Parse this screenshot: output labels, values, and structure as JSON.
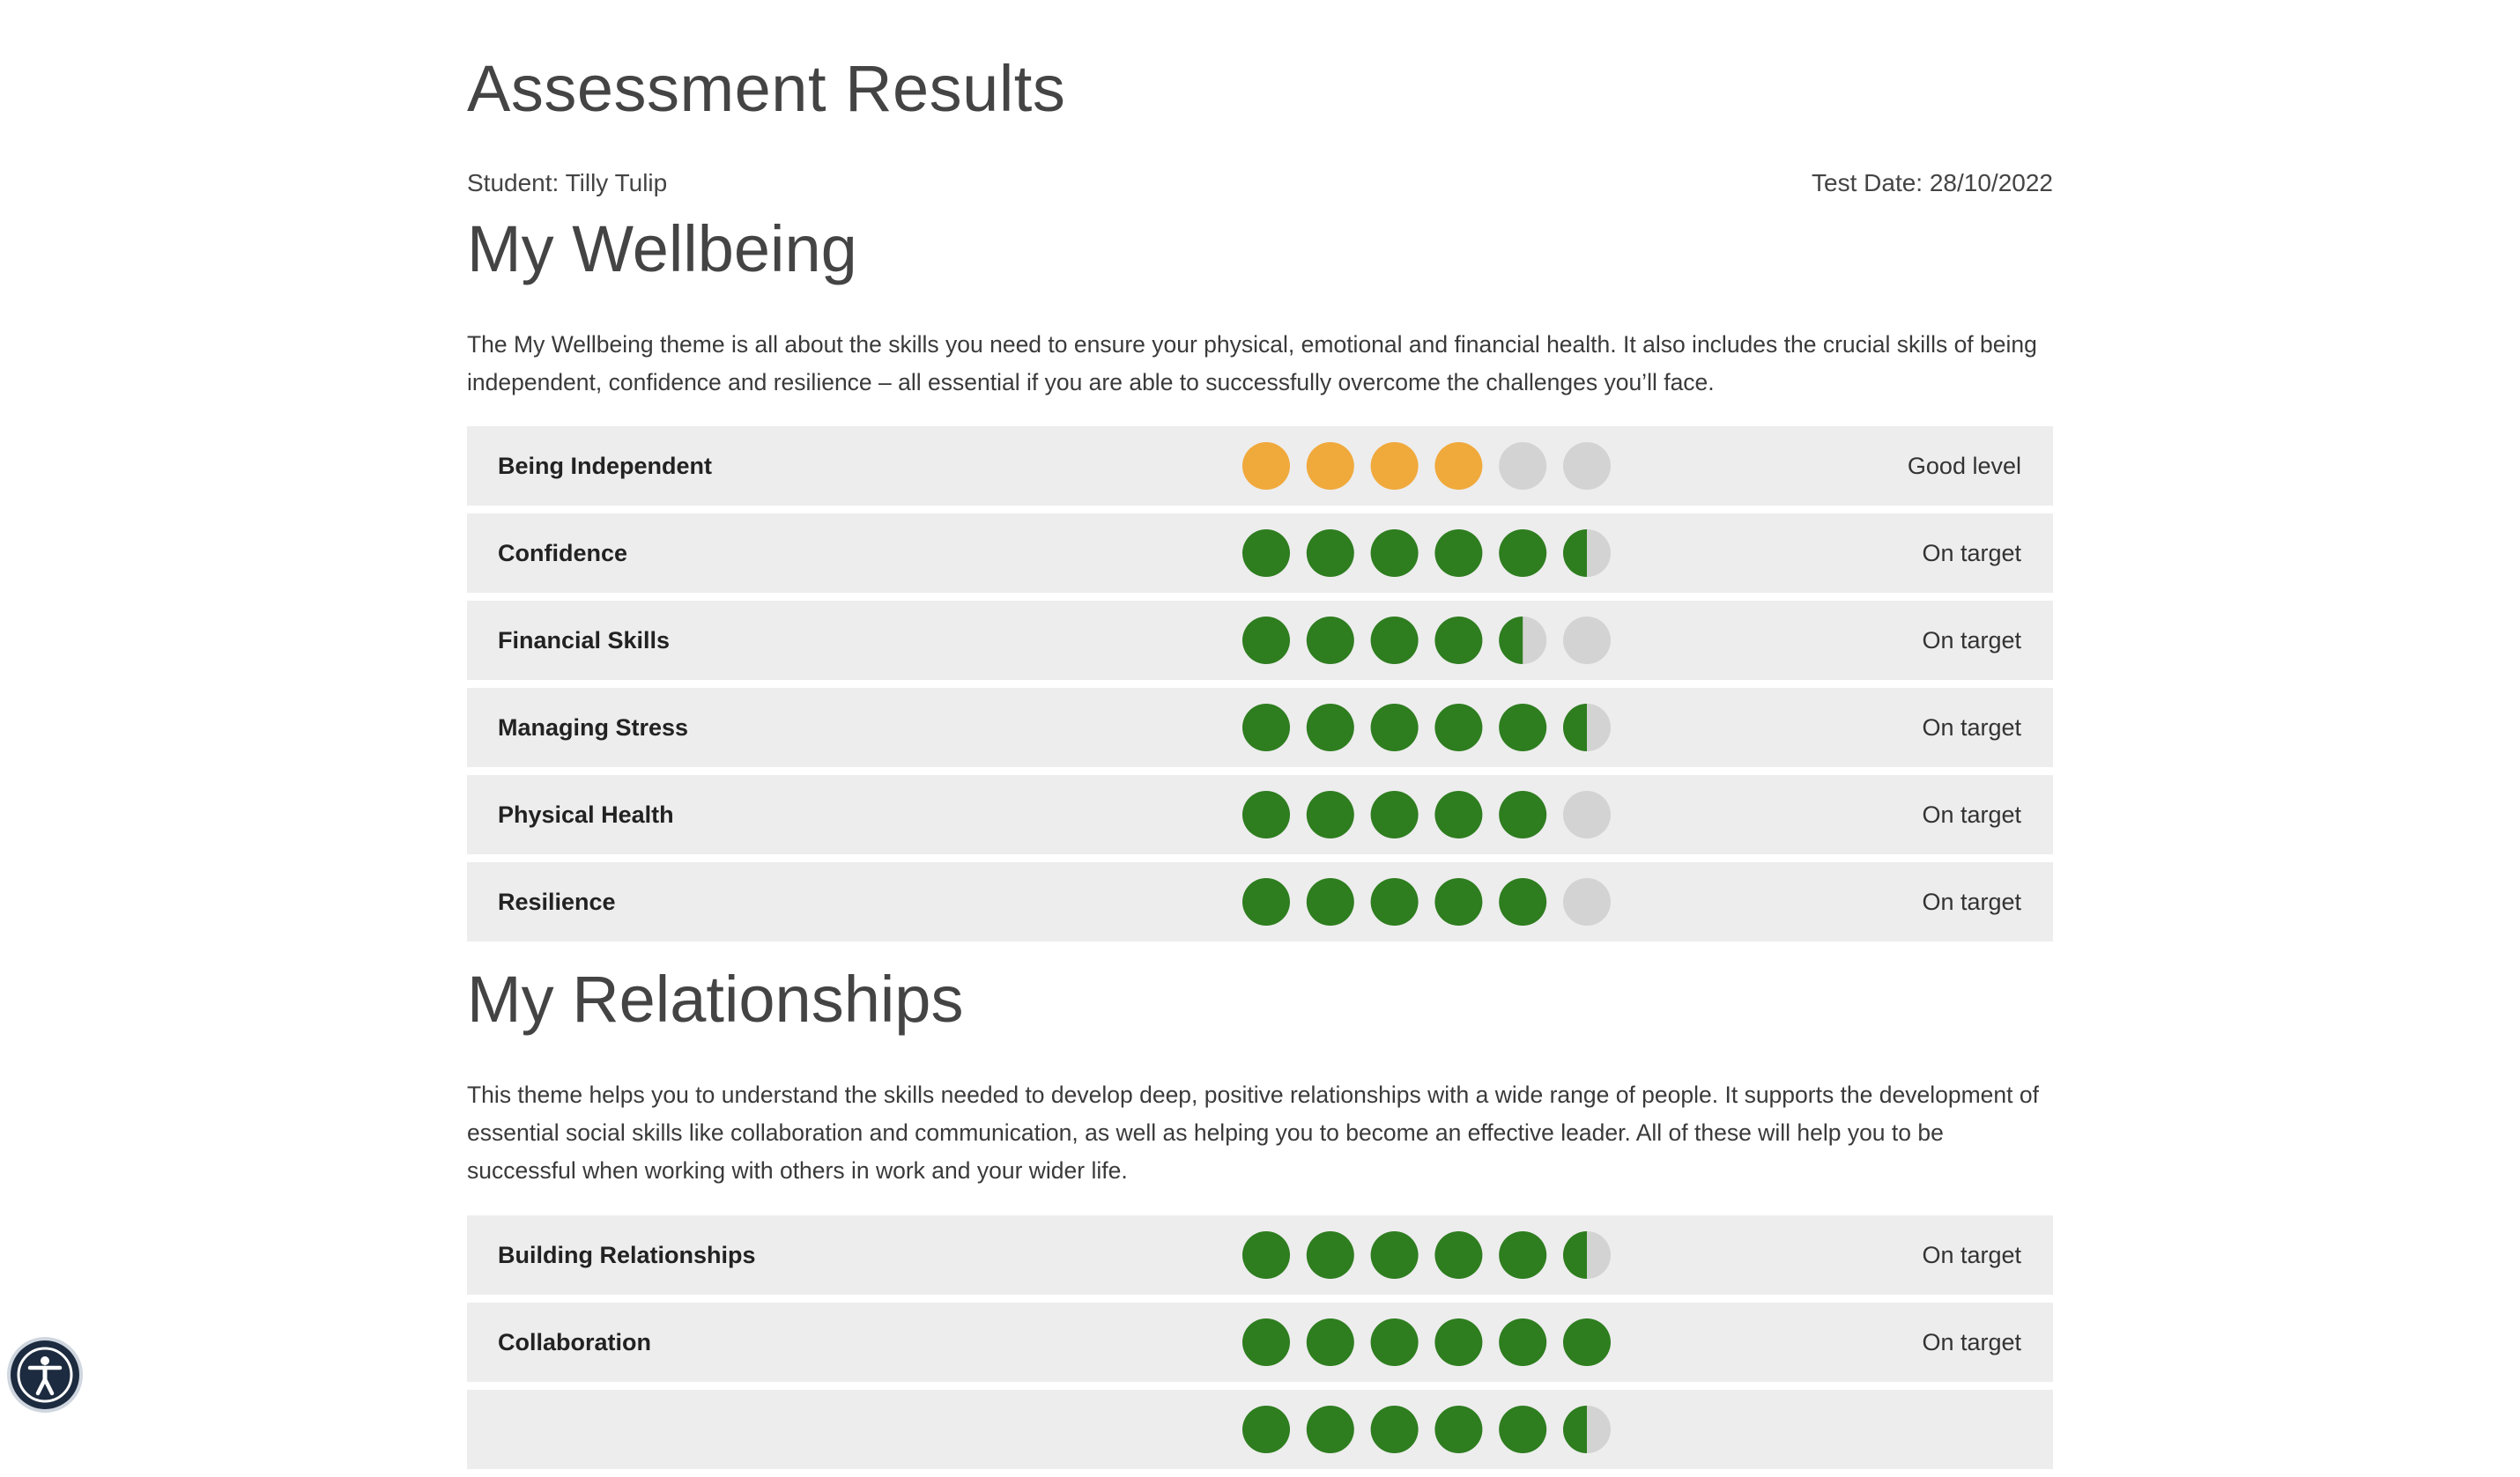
{
  "header": {
    "title": "Assessment Results",
    "student": "Student: Tilly Tulip",
    "test_date": "Test Date: 28/10/2022"
  },
  "colors": {
    "row_bg": "#ededed",
    "dot_empty": "#d3d3d3",
    "dot_green": "#2e7d1f",
    "dot_orange": "#f0a93b"
  },
  "dots_total": 6,
  "sections": [
    {
      "title": "My Wellbeing",
      "description": "The My Wellbeing theme is all about the skills you need to ensure your physical, emotional and financial health. It also includes the crucial skills of being independent, confidence and resilience – all essential if you are able to successfully overcome the challenges you’ll face.",
      "skills": [
        {
          "name": "Being Independent",
          "score": 4,
          "color": "orange",
          "status": "Good level"
        },
        {
          "name": "Confidence",
          "score": 5.5,
          "color": "green",
          "status": "On target"
        },
        {
          "name": "Financial Skills",
          "score": 4.5,
          "color": "green",
          "status": "On target"
        },
        {
          "name": "Managing Stress",
          "score": 5.5,
          "color": "green",
          "status": "On target"
        },
        {
          "name": "Physical Health",
          "score": 5,
          "color": "green",
          "status": "On target"
        },
        {
          "name": "Resilience",
          "score": 5,
          "color": "green",
          "status": "On target"
        }
      ]
    },
    {
      "title": "My Relationships",
      "description": "This theme helps you to understand the skills needed to develop deep, positive relationships with a wide range of people. It supports the development of essential social skills like collaboration and communication, as well as helping you to become an effective leader. All of these will help you to be successful when working with others in work and your wider life.",
      "skills": [
        {
          "name": "Building Relationships",
          "score": 5.5,
          "color": "green",
          "status": "On target"
        },
        {
          "name": "Collaboration",
          "score": 6,
          "color": "green",
          "status": "On target"
        },
        {
          "name": "",
          "score": 5.5,
          "color": "green",
          "status": ""
        }
      ]
    }
  ],
  "accessibility": {
    "icon": "accessibility-person-icon"
  }
}
